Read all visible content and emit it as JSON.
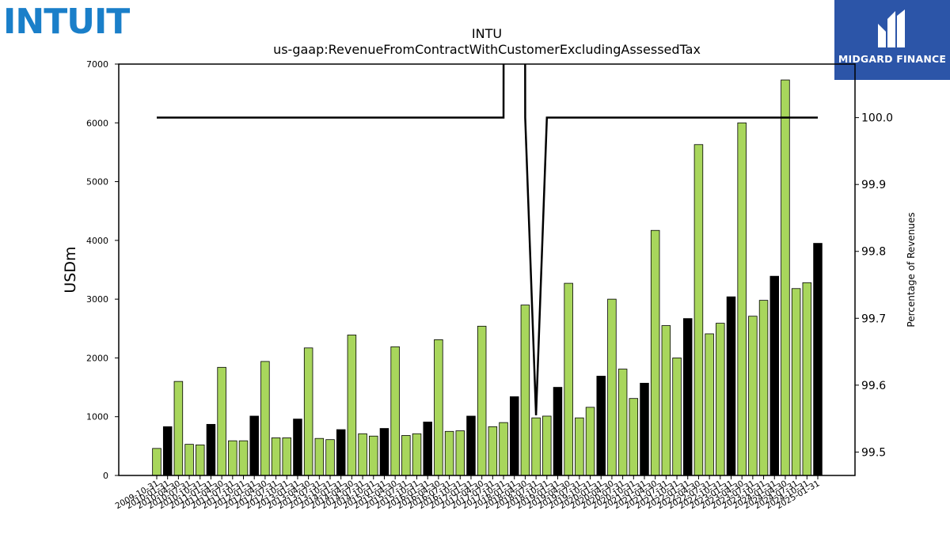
{
  "branding": {
    "company_logo_text": "INTUIT",
    "publisher_text": "MIDGARD FINANCE",
    "colors": {
      "intuit_blue": "#1a7fc9",
      "publisher_bg": "#2c55a8"
    }
  },
  "chart_data": {
    "type": "bar",
    "title": "INTU",
    "subtitle": "us-gaap:RevenueFromContractWithCustomerExcludingAssessedTax",
    "ylabel": "USDm",
    "y2label": "Percentage of Revenues",
    "ylim": [
      0,
      7000
    ],
    "yticks": [
      0,
      1000,
      2000,
      3000,
      4000,
      5000,
      6000,
      7000
    ],
    "y2lim": [
      99.465,
      100.08
    ],
    "y2ticks": [
      "99.5",
      "99.6",
      "99.7",
      "99.8",
      "99.9",
      "100.0"
    ],
    "grid": false,
    "legend": "none",
    "colors": {
      "quarter_bar": "#a8d65c",
      "annual_bar": "#000000",
      "bar_edge": "#000000",
      "line": "#000000"
    },
    "categories": [
      "2009-10-31",
      "2010-01-31",
      "2010-04-30",
      "2010-07-31",
      "2010-10-31",
      "2011-01-31",
      "2011-04-30",
      "2011-07-31",
      "2011-10-31",
      "2012-01-31",
      "2012-04-30",
      "2012-07-31",
      "2012-10-31",
      "2013-01-31",
      "2013-04-30",
      "2013-07-31",
      "2013-10-31",
      "2014-01-31",
      "2014-04-30",
      "2014-07-31",
      "2014-10-31",
      "2015-01-31",
      "2015-04-30",
      "2015-07-31",
      "2015-10-31",
      "2016-01-31",
      "2016-04-30",
      "2016-07-31",
      "2016-10-31",
      "2017-01-31",
      "2017-04-30",
      "2017-07-31",
      "2017-10-31",
      "2018-01-31",
      "2018-04-30",
      "2018-07-31",
      "2018-10-31",
      "2019-01-31",
      "2019-04-30",
      "2019-07-31",
      "2019-10-31",
      "2020-01-31",
      "2020-04-30",
      "2020-07-31",
      "2020-10-31",
      "2021-01-31",
      "2021-04-30",
      "2021-07-31",
      "2021-10-31",
      "2022-01-31",
      "2022-04-30",
      "2022-07-31",
      "2022-10-31",
      "2023-01-31",
      "2023-04-30",
      "2023-07-31",
      "2023-10-31",
      "2024-01-31",
      "2024-04-30",
      "2024-07-31",
      "2024-10-31",
      "2025-01-31"
    ],
    "values": [
      460,
      830,
      1600,
      530,
      520,
      870,
      1840,
      590,
      590,
      1010,
      1940,
      640,
      640,
      960,
      2170,
      630,
      610,
      780,
      2390,
      710,
      670,
      800,
      2190,
      680,
      710,
      910,
      2310,
      750,
      760,
      1010,
      2540,
      830,
      900,
      1340,
      2900,
      980,
      1010,
      1500,
      3270,
      980,
      1160,
      1690,
      3000,
      1810,
      1310,
      1570,
      4170,
      2550,
      2000,
      2670,
      5630,
      2410,
      2590,
      3040,
      6000,
      2710,
      2980,
      3390,
      6730,
      3180,
      3280,
      3950
    ],
    "annual": [
      false,
      true,
      false,
      false,
      false,
      true,
      false,
      false,
      false,
      true,
      false,
      false,
      false,
      true,
      false,
      false,
      false,
      true,
      false,
      false,
      false,
      true,
      false,
      false,
      false,
      true,
      false,
      false,
      false,
      true,
      false,
      false,
      false,
      true,
      false,
      false,
      false,
      true,
      false,
      false,
      false,
      true,
      false,
      false,
      false,
      true,
      false,
      false,
      false,
      true,
      false,
      false,
      false,
      true,
      false,
      false,
      false,
      true,
      false,
      false,
      false,
      true
    ],
    "percentage_series": {
      "name": "Percentage of Revenues",
      "values": [
        100,
        100,
        100,
        100,
        100,
        100,
        100,
        100,
        100,
        100,
        100,
        100,
        100,
        100,
        100,
        100,
        100,
        100,
        100,
        100,
        100,
        100,
        100,
        100,
        100,
        100,
        100,
        100,
        100,
        100,
        100,
        100,
        100,
        115,
        100,
        99.555,
        100,
        100,
        100,
        100,
        100,
        100,
        100,
        100,
        100,
        100,
        100,
        100,
        100,
        100,
        100,
        100,
        100,
        100,
        100,
        100,
        100,
        100,
        100,
        100,
        100,
        100
      ]
    }
  }
}
